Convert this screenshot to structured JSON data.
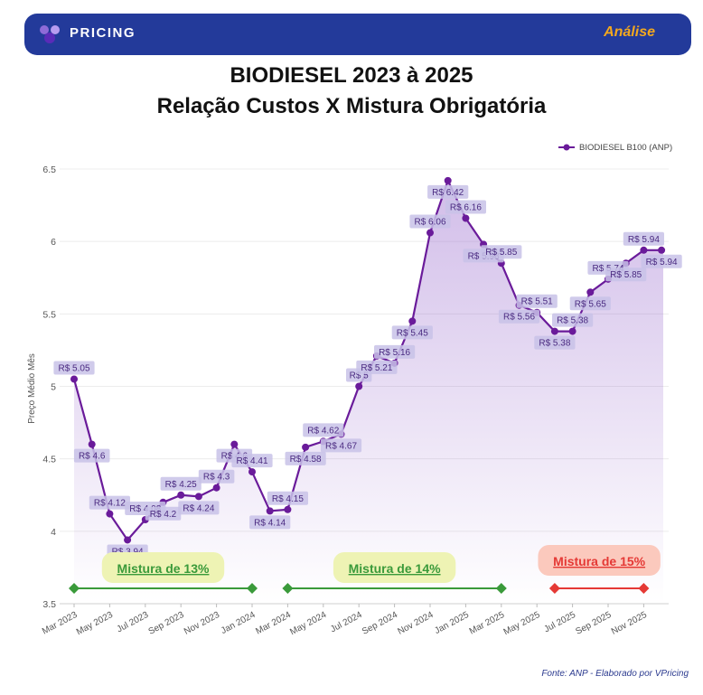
{
  "header": {
    "brand": "PRICING",
    "tag": "Análise",
    "brand_color": "#233a9a",
    "tag_color": "#f3a81e",
    "logo_icon": "vpricing-logo-icon"
  },
  "title_line1": "BIODIESEL 2023 à 2025",
  "title_line2": "Relação Custos X Mistura Obrigatória",
  "source": "Fonte: ANP - Elaborado por VPricing",
  "chart_data": {
    "type": "area",
    "series": [
      {
        "name": "BIODIESEL B100 (ANP)",
        "color": "#6a1b9a",
        "values": [
          5.05,
          4.6,
          4.12,
          3.94,
          4.08,
          4.2,
          4.25,
          4.24,
          4.3,
          4.6,
          4.41,
          4.14,
          4.15,
          4.58,
          4.62,
          4.67,
          5,
          5.21,
          5.16,
          5.45,
          6.06,
          6.42,
          6.16,
          5.98,
          5.85,
          5.56,
          5.51,
          5.38,
          5.38,
          5.65,
          5.74,
          5.85,
          5.94,
          5.94
        ]
      }
    ],
    "data_labels": [
      "R$ 5.05",
      "R$ 4.6",
      "R$ 4.12",
      "R$ 3.94",
      "R$ 4.08",
      "R$ 4.2",
      "R$ 4.25",
      "R$ 4.24",
      "R$ 4.3",
      "R$ 4.6",
      "R$ 4.41",
      "R$ 4.14",
      "R$ 4.15",
      "R$ 4.58",
      "R$ 4.62",
      "R$ 4.67",
      "R$ 5",
      "R$ 5.21",
      "R$ 5.16",
      "R$ 5.45",
      "R$ 6.06",
      "R$ 6.42",
      "R$ 6.16",
      "R$ 5.98",
      "R$ 5.85",
      "R$ 5.56",
      "R$ 5.51",
      "R$ 5.38",
      "R$ 5.38",
      "R$ 5.65",
      "R$ 5.74",
      "R$ 5.85",
      "R$ 5.94",
      "R$ 5.94"
    ],
    "x_ticks": [
      "Mar 2023",
      "May 2023",
      "Jul 2023",
      "Sep 2023",
      "Nov 2023",
      "Jan 2024",
      "Mar 2024",
      "May 2024",
      "Jul 2024",
      "Sep 2024",
      "Nov 2024",
      "Jan 2025",
      "Mar 2025",
      "May 2025",
      "Jul 2025",
      "Sep 2025",
      "Nov 2025"
    ],
    "y_ticks": [
      "3.5",
      "4",
      "4.5",
      "5",
      "5.5",
      "6",
      "6.5"
    ],
    "ylim": [
      3.5,
      6.5
    ],
    "ylabel": "Preço Médio Mês",
    "xlabel": "",
    "legend_position": "top-right",
    "grid": true,
    "annotations": [
      {
        "text": "Mistura de 13%",
        "start": 0,
        "end": 10,
        "line_color": "#3a9a3a",
        "box_color": "#eef3b4",
        "text_color": "#3a9a3a"
      },
      {
        "text": "Mistura de 14%",
        "start": 12,
        "end": 24,
        "line_color": "#3a9a3a",
        "box_color": "#eef3b4",
        "text_color": "#3a9a3a"
      },
      {
        "text": "Mistura de 15%",
        "start": 27,
        "end": 32,
        "line_color": "#e53935",
        "box_color": "#fbc9bd",
        "text_color": "#e53935"
      }
    ]
  }
}
